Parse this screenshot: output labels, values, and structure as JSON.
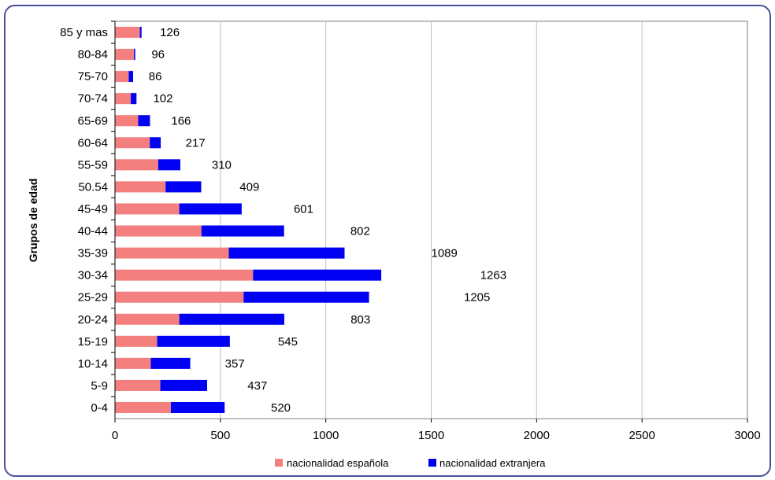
{
  "chart_data": {
    "type": "bar",
    "orientation": "horizontal",
    "stacked": true,
    "title": "",
    "ylabel": "Grupos de edad",
    "xlabel": "",
    "xlim": [
      0,
      3000
    ],
    "xticks": [
      0,
      500,
      1000,
      1500,
      2000,
      2500,
      3000
    ],
    "grid": true,
    "legend_position": "bottom",
    "categories": [
      "85 y mas",
      "80-84",
      "75-70",
      "70-74",
      "65-69",
      "60-64",
      "55-59",
      "50.54",
      "45-49",
      "40-44",
      "35-39",
      "30-34",
      "25-29",
      "20-24",
      "15-19",
      "10-14",
      "5-9",
      "0-4"
    ],
    "series": [
      {
        "name": "nacionalidad española",
        "color": "#f47f7f",
        "values": [
          118,
          90,
          65,
          75,
          110,
          165,
          205,
          240,
          305,
          410,
          540,
          655,
          610,
          305,
          200,
          170,
          215,
          265
        ]
      },
      {
        "name": "nacionalidad extranjera",
        "color": "#0000f2",
        "values": [
          8,
          6,
          21,
          27,
          56,
          52,
          105,
          169,
          296,
          392,
          549,
          608,
          595,
          498,
          345,
          187,
          222,
          255
        ]
      }
    ],
    "totals": [
      "126",
      "96",
      "86",
      "102",
      "166",
      "217",
      "310",
      "409",
      "601",
      "802",
      "1089",
      "1263",
      "1205",
      "803",
      "545",
      "357",
      "437",
      "520"
    ]
  }
}
